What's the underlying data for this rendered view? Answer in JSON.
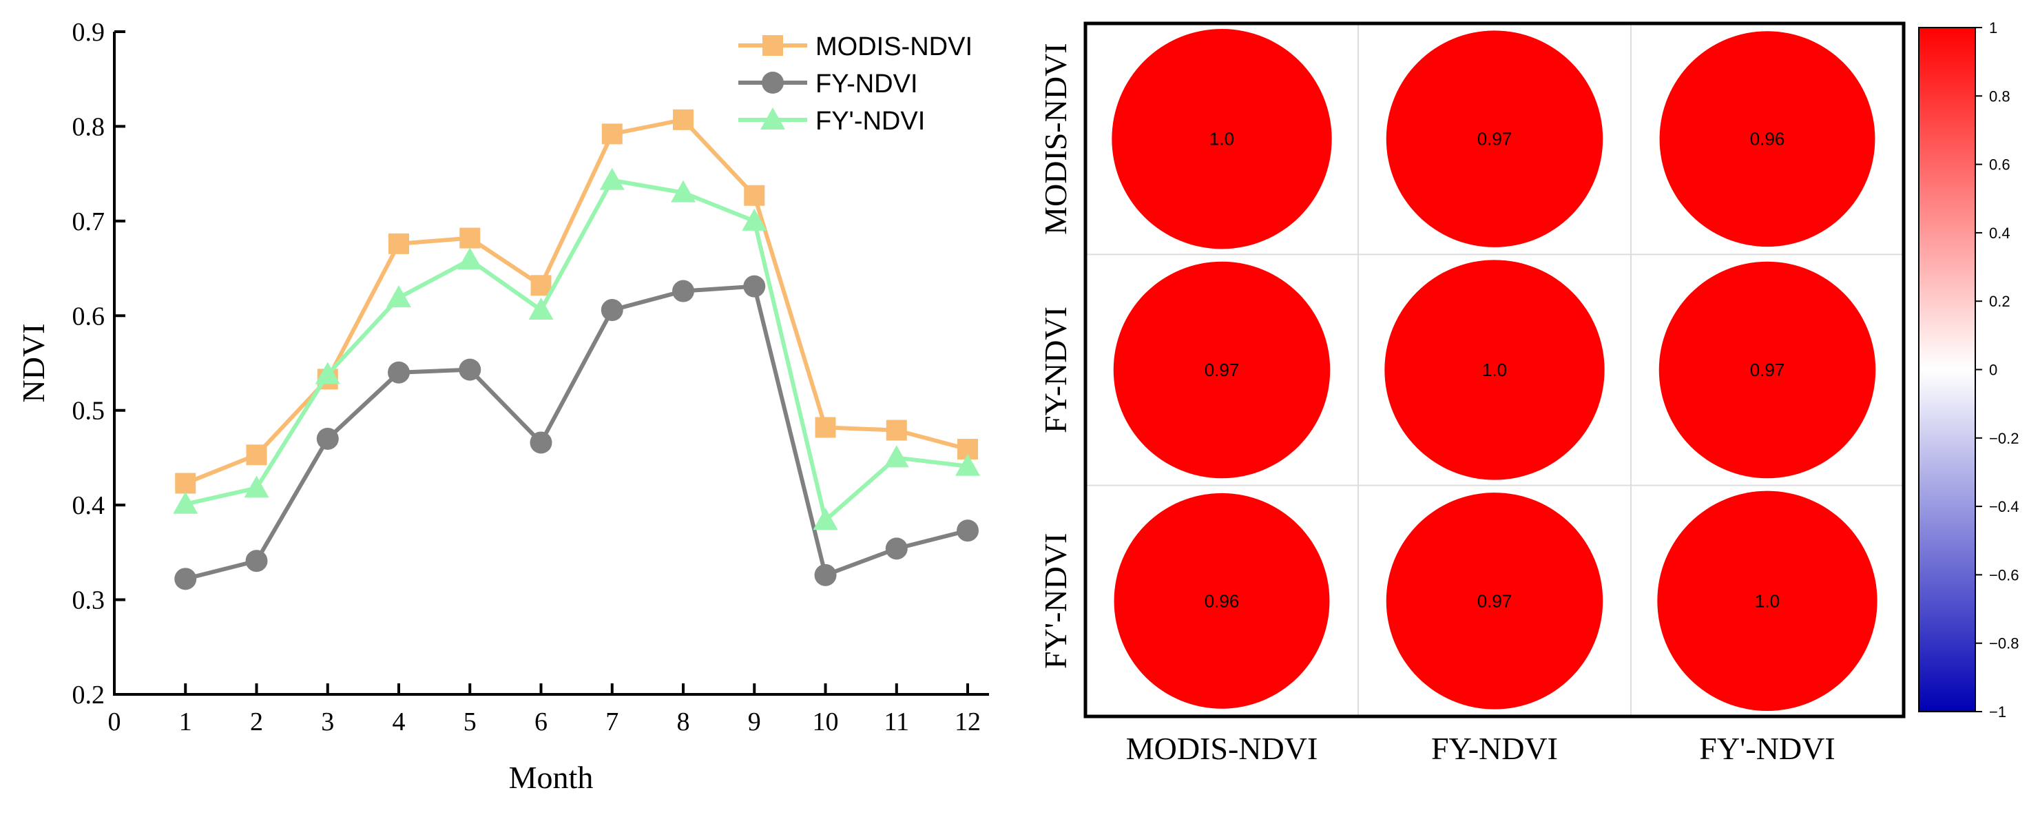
{
  "chart_data": [
    {
      "type": "line",
      "xlabel": "Month",
      "ylabel": "NDVI",
      "xlim": [
        0,
        12.3
      ],
      "ylim": [
        0.2,
        0.9
      ],
      "x_ticks": [
        "0",
        "1",
        "2",
        "3",
        "4",
        "5",
        "6",
        "7",
        "8",
        "9",
        "10",
        "11",
        "12"
      ],
      "y_ticks": [
        "0.2",
        "0.3",
        "0.4",
        "0.5",
        "0.6",
        "0.7",
        "0.8",
        "0.9"
      ],
      "grid": false,
      "legend_position": "top-right",
      "categories": [
        1,
        2,
        3,
        4,
        5,
        6,
        7,
        8,
        9,
        10,
        11,
        12
      ],
      "series": [
        {
          "name": "MODIS-NDVI",
          "color": "#f9bb72",
          "marker": "square",
          "values": [
            0.423,
            0.453,
            0.533,
            0.676,
            0.682,
            0.632,
            0.792,
            0.807,
            0.727,
            0.482,
            0.479,
            0.459
          ]
        },
        {
          "name": "FY-NDVI",
          "color": "#808080",
          "marker": "circle",
          "values": [
            0.322,
            0.341,
            0.47,
            0.54,
            0.543,
            0.466,
            0.606,
            0.626,
            0.631,
            0.326,
            0.354,
            0.373
          ]
        },
        {
          "name": "FY'-NDVI",
          "color": "#98f5b0",
          "marker": "triangle",
          "values": [
            0.401,
            0.418,
            0.538,
            0.619,
            0.659,
            0.606,
            0.743,
            0.73,
            0.7,
            0.384,
            0.45,
            0.441
          ]
        }
      ]
    },
    {
      "type": "heatmap",
      "subtype": "correlation-circles",
      "row_labels": [
        "MODIS-NDVI",
        "FY-NDVI",
        "FY'-NDVI"
      ],
      "col_labels": [
        "MODIS-NDVI",
        "FY-NDVI",
        "FY'-NDVI"
      ],
      "cells": [
        [
          {
            "value": 1.0,
            "label": "1.0"
          },
          {
            "value": 0.97,
            "label": "0.97"
          },
          {
            "value": 0.96,
            "label": "0.96"
          }
        ],
        [
          {
            "value": 0.97,
            "label": "0.97"
          },
          {
            "value": 1.0,
            "label": "1.0"
          },
          {
            "value": 0.97,
            "label": "0.97"
          }
        ],
        [
          {
            "value": 0.96,
            "label": "0.96"
          },
          {
            "value": 0.97,
            "label": "0.97"
          },
          {
            "value": 1.0,
            "label": "1.0"
          }
        ]
      ],
      "colorbar": {
        "range": [
          -1,
          1
        ],
        "ticks": [
          "1",
          "0.8",
          "0.6",
          "0.4",
          "0.2",
          "0",
          "-0.2",
          "-0.4",
          "-0.6",
          "-0.8",
          "-1"
        ],
        "colors": {
          "positive": "#ff0000",
          "zero": "#ffffff",
          "negative": "#0000b4"
        }
      },
      "cell_color": "#ff0000"
    }
  ]
}
